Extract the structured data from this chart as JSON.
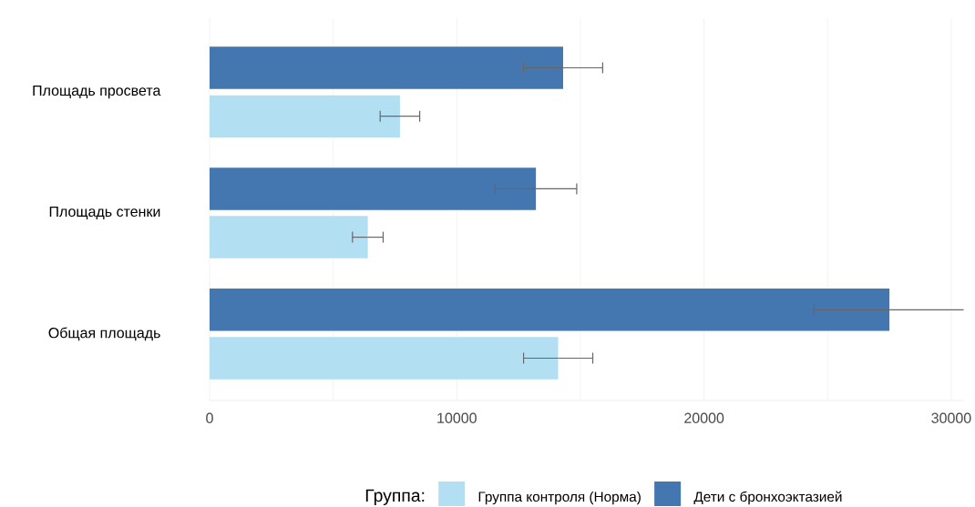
{
  "chart_data": {
    "type": "bar",
    "orientation": "horizontal",
    "categories": [
      "Площадь просвета",
      "Площадь стенки",
      "Общая площадь"
    ],
    "series": [
      {
        "name": "Группа контроля (Норма)",
        "color": "#b3dff2",
        "values": [
          7700,
          6400,
          14100
        ],
        "errors": [
          800,
          620,
          1400
        ]
      },
      {
        "name": "Дети с бронхоэктазией",
        "color": "#4477b0",
        "values": [
          14300,
          13200,
          27500
        ],
        "errors": [
          1600,
          1650,
          3050
        ]
      }
    ],
    "xlim": [
      0,
      30500
    ],
    "xticks": [
      0,
      {
        "value": 5000,
        "label": null
      },
      10000,
      {
        "value": 15000,
        "label": null
      },
      20000,
      {
        "value": 25000,
        "label": null
      },
      30000
    ],
    "grid": "x",
    "legend": "bottom",
    "legend_title": "Группа:"
  }
}
